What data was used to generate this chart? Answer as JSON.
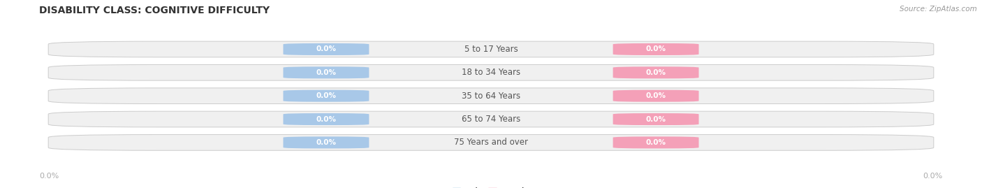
{
  "title": "DISABILITY CLASS: COGNITIVE DIFFICULTY",
  "source": "Source: ZipAtlas.com",
  "categories": [
    "5 to 17 Years",
    "18 to 34 Years",
    "35 to 64 Years",
    "65 to 74 Years",
    "75 Years and over"
  ],
  "male_values": [
    0.0,
    0.0,
    0.0,
    0.0,
    0.0
  ],
  "female_values": [
    0.0,
    0.0,
    0.0,
    0.0,
    0.0
  ],
  "male_color": "#a8c8e8",
  "female_color": "#f4a0b8",
  "bar_bg_color": "#f0f0f0",
  "bar_border_color": "#cccccc",
  "male_legend_color": "#7ab0d4",
  "female_legend_color": "#f080a0",
  "title_color": "#333333",
  "source_color": "#999999",
  "axis_label_color": "#aaaaaa",
  "left_label": "0.0%",
  "right_label": "0.0%",
  "cat_text_color": "#555555",
  "figsize": [
    14.06,
    2.69
  ],
  "dpi": 100
}
